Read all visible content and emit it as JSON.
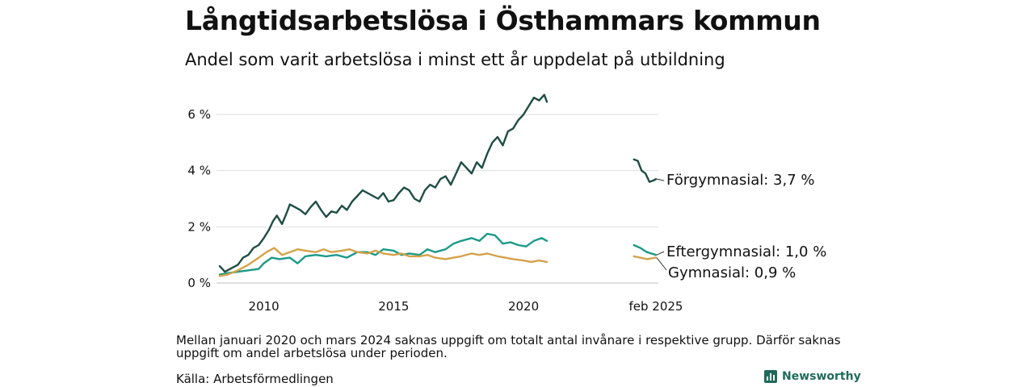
{
  "title": "Långtidsarbetslösa i Östhammars kommun",
  "subtitle": "Andel som varit arbetslösa i minst ett år uppdelat på utbildning",
  "note": "Mellan januari 2020 och mars 2024 saknas uppgift om totalt antal invånare i respektive grupp. Därför saknas uppgift om andel arbetslösa under perioden.",
  "source": "Källa: Arbetsförmedlingen",
  "brand": "Newsworthy",
  "chart_data": {
    "type": "line",
    "ylim": [
      0,
      7
    ],
    "yticks": [
      0,
      2,
      4,
      6
    ],
    "ytick_labels": [
      "0 %",
      "2 %",
      "4 %",
      "6 %"
    ],
    "xticks": [
      2010,
      2015,
      2020,
      2025.1
    ],
    "xtick_labels": [
      "2010",
      "2015",
      "2020",
      "feb 2025"
    ],
    "grid": true,
    "series": [
      {
        "name": "Förgymnasial",
        "color": "#1e4d44",
        "end_label": "Förgymnasial: 3,7 %",
        "segments": [
          [
            [
              2008.3,
              0.6
            ],
            [
              2008.5,
              0.4
            ],
            [
              2008.8,
              0.55
            ],
            [
              2009.0,
              0.65
            ],
            [
              2009.2,
              0.9
            ],
            [
              2009.4,
              1.0
            ],
            [
              2009.6,
              1.25
            ],
            [
              2009.8,
              1.35
            ],
            [
              2010.0,
              1.6
            ],
            [
              2010.2,
              1.9
            ],
            [
              2010.35,
              2.2
            ],
            [
              2010.5,
              2.4
            ],
            [
              2010.7,
              2.1
            ],
            [
              2010.9,
              2.55
            ],
            [
              2011.0,
              2.8
            ],
            [
              2011.2,
              2.7
            ],
            [
              2011.4,
              2.6
            ],
            [
              2011.6,
              2.45
            ],
            [
              2011.8,
              2.7
            ],
            [
              2012.0,
              2.9
            ],
            [
              2012.2,
              2.6
            ],
            [
              2012.4,
              2.35
            ],
            [
              2012.6,
              2.55
            ],
            [
              2012.8,
              2.5
            ],
            [
              2013.0,
              2.75
            ],
            [
              2013.2,
              2.6
            ],
            [
              2013.4,
              2.9
            ],
            [
              2013.6,
              3.1
            ],
            [
              2013.8,
              3.3
            ],
            [
              2014.0,
              3.2
            ],
            [
              2014.2,
              3.1
            ],
            [
              2014.4,
              3.0
            ],
            [
              2014.6,
              3.2
            ],
            [
              2014.8,
              2.9
            ],
            [
              2015.0,
              2.95
            ],
            [
              2015.2,
              3.2
            ],
            [
              2015.4,
              3.4
            ],
            [
              2015.6,
              3.3
            ],
            [
              2015.8,
              3.0
            ],
            [
              2016.0,
              2.9
            ],
            [
              2016.2,
              3.3
            ],
            [
              2016.4,
              3.5
            ],
            [
              2016.6,
              3.4
            ],
            [
              2016.8,
              3.7
            ],
            [
              2017.0,
              3.8
            ],
            [
              2017.2,
              3.5
            ],
            [
              2017.4,
              3.9
            ],
            [
              2017.6,
              4.3
            ],
            [
              2017.8,
              4.1
            ],
            [
              2018.0,
              3.9
            ],
            [
              2018.2,
              4.3
            ],
            [
              2018.4,
              4.1
            ],
            [
              2018.6,
              4.6
            ],
            [
              2018.8,
              5.0
            ],
            [
              2019.0,
              5.2
            ],
            [
              2019.2,
              4.9
            ],
            [
              2019.4,
              5.4
            ],
            [
              2019.6,
              5.5
            ],
            [
              2019.8,
              5.8
            ],
            [
              2020.0,
              6.0
            ],
            [
              2020.2,
              6.3
            ],
            [
              2020.4,
              6.6
            ],
            [
              2020.6,
              6.5
            ],
            [
              2020.8,
              6.7
            ],
            [
              2020.9,
              6.45
            ]
          ],
          [
            [
              2024.25,
              4.4
            ],
            [
              2024.4,
              4.35
            ],
            [
              2024.55,
              4.0
            ],
            [
              2024.7,
              3.9
            ],
            [
              2024.85,
              3.6
            ],
            [
              2025.0,
              3.65
            ],
            [
              2025.1,
              3.7
            ]
          ]
        ]
      },
      {
        "name": "Eftergymnasial",
        "color": "#1a9a88",
        "end_label": "Eftergymnasial: 1,0 %",
        "segments": [
          [
            [
              2008.3,
              0.3
            ],
            [
              2008.6,
              0.35
            ],
            [
              2009.0,
              0.4
            ],
            [
              2009.4,
              0.45
            ],
            [
              2009.8,
              0.5
            ],
            [
              2010.0,
              0.7
            ],
            [
              2010.3,
              0.9
            ],
            [
              2010.6,
              0.85
            ],
            [
              2011.0,
              0.9
            ],
            [
              2011.3,
              0.7
            ],
            [
              2011.6,
              0.95
            ],
            [
              2012.0,
              1.0
            ],
            [
              2012.4,
              0.95
            ],
            [
              2012.8,
              1.0
            ],
            [
              2013.2,
              0.9
            ],
            [
              2013.6,
              1.1
            ],
            [
              2014.0,
              1.1
            ],
            [
              2014.3,
              1.0
            ],
            [
              2014.6,
              1.2
            ],
            [
              2015.0,
              1.15
            ],
            [
              2015.3,
              1.0
            ],
            [
              2015.6,
              1.05
            ],
            [
              2016.0,
              1.0
            ],
            [
              2016.3,
              1.2
            ],
            [
              2016.6,
              1.1
            ],
            [
              2017.0,
              1.2
            ],
            [
              2017.3,
              1.4
            ],
            [
              2017.6,
              1.5
            ],
            [
              2018.0,
              1.6
            ],
            [
              2018.3,
              1.5
            ],
            [
              2018.6,
              1.75
            ],
            [
              2018.9,
              1.7
            ],
            [
              2019.2,
              1.4
            ],
            [
              2019.5,
              1.45
            ],
            [
              2019.8,
              1.35
            ],
            [
              2020.1,
              1.3
            ],
            [
              2020.4,
              1.5
            ],
            [
              2020.7,
              1.6
            ],
            [
              2020.9,
              1.5
            ]
          ],
          [
            [
              2024.25,
              1.35
            ],
            [
              2024.5,
              1.25
            ],
            [
              2024.75,
              1.1
            ],
            [
              2025.1,
              1.0
            ]
          ]
        ]
      },
      {
        "name": "Gymnasial",
        "color": "#d4a24a",
        "end_label": "Gymnasial: 0,9 %",
        "segments": [
          [
            [
              2008.3,
              0.25
            ],
            [
              2008.6,
              0.3
            ],
            [
              2009.0,
              0.45
            ],
            [
              2009.4,
              0.65
            ],
            [
              2009.8,
              0.9
            ],
            [
              2010.1,
              1.1
            ],
            [
              2010.4,
              1.25
            ],
            [
              2010.7,
              1.0
            ],
            [
              2011.0,
              1.1
            ],
            [
              2011.3,
              1.2
            ],
            [
              2011.6,
              1.15
            ],
            [
              2012.0,
              1.1
            ],
            [
              2012.3,
              1.2
            ],
            [
              2012.6,
              1.1
            ],
            [
              2013.0,
              1.15
            ],
            [
              2013.3,
              1.2
            ],
            [
              2013.6,
              1.1
            ],
            [
              2014.0,
              1.05
            ],
            [
              2014.3,
              1.15
            ],
            [
              2014.6,
              1.05
            ],
            [
              2015.0,
              1.0
            ],
            [
              2015.3,
              1.05
            ],
            [
              2015.6,
              0.95
            ],
            [
              2016.0,
              0.95
            ],
            [
              2016.3,
              1.0
            ],
            [
              2016.6,
              0.9
            ],
            [
              2017.0,
              0.85
            ],
            [
              2017.3,
              0.9
            ],
            [
              2017.6,
              0.95
            ],
            [
              2018.0,
              1.05
            ],
            [
              2018.3,
              1.0
            ],
            [
              2018.6,
              1.05
            ],
            [
              2019.0,
              0.95
            ],
            [
              2019.3,
              0.9
            ],
            [
              2019.6,
              0.85
            ],
            [
              2020.0,
              0.8
            ],
            [
              2020.3,
              0.75
            ],
            [
              2020.6,
              0.8
            ],
            [
              2020.9,
              0.75
            ]
          ],
          [
            [
              2024.25,
              0.95
            ],
            [
              2024.5,
              0.9
            ],
            [
              2024.75,
              0.85
            ],
            [
              2025.1,
              0.9
            ]
          ]
        ]
      }
    ]
  }
}
